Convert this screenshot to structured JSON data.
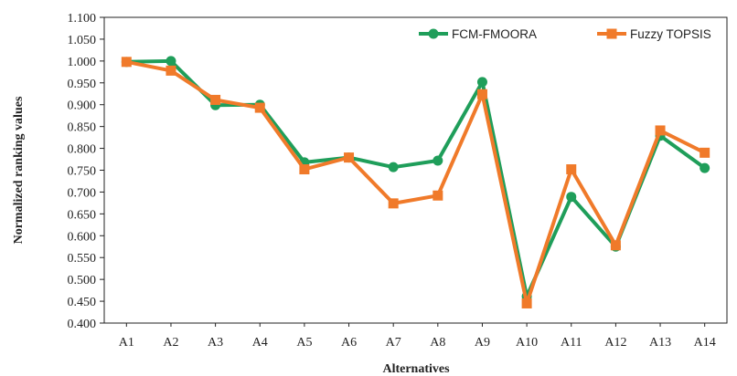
{
  "chart_data": {
    "type": "line",
    "categories": [
      "A1",
      "A2",
      "A3",
      "A4",
      "A5",
      "A6",
      "A7",
      "A8",
      "A9",
      "A10",
      "A11",
      "A12",
      "A13",
      "A14"
    ],
    "series": [
      {
        "name": "FCM-FMOORA",
        "color": "#1f9e5a",
        "marker": "circle",
        "values": [
          0.998,
          1.0,
          0.899,
          0.9,
          0.768,
          0.779,
          0.757,
          0.772,
          0.952,
          0.461,
          0.689,
          0.575,
          0.829,
          0.755
        ]
      },
      {
        "name": "Fuzzy TOPSIS",
        "color": "#f07a2a",
        "marker": "square",
        "values": [
          0.998,
          0.978,
          0.911,
          0.893,
          0.752,
          0.779,
          0.674,
          0.692,
          0.924,
          0.445,
          0.752,
          0.578,
          0.841,
          0.79
        ]
      }
    ],
    "xlabel": "Alternatives",
    "ylabel": "Normalized ranking values",
    "ylim": [
      0.4,
      1.1
    ],
    "yticks": [
      "0.400",
      "0.450",
      "0.500",
      "0.550",
      "0.600",
      "0.650",
      "0.700",
      "0.750",
      "0.800",
      "0.850",
      "0.900",
      "0.950",
      "1.000",
      "1.050",
      "1.100"
    ],
    "grid": false,
    "legend_position": "top-right"
  }
}
